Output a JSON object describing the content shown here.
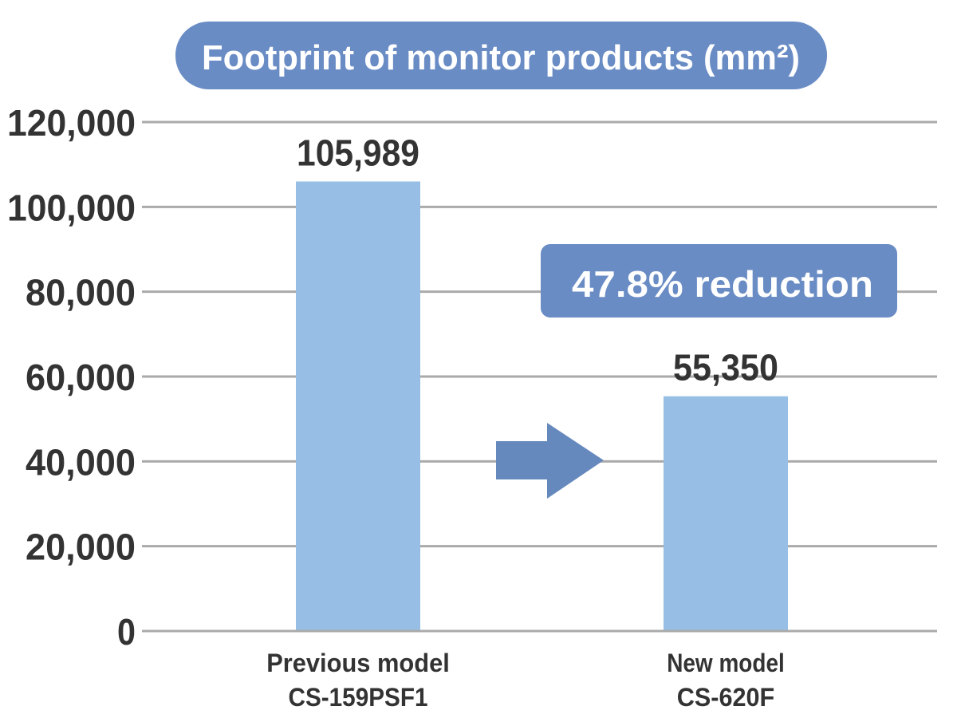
{
  "chart_data": {
    "type": "bar",
    "title": "Footprint of monitor products (mm²)",
    "categories": [
      {
        "line1": "Previous model",
        "line2": "CS-159PSF1"
      },
      {
        "line1": "New model",
        "line2": "CS-620F"
      }
    ],
    "values": [
      105989,
      55350
    ],
    "data_labels": [
      "105,989",
      "55,350"
    ],
    "ylim": [
      0,
      120000
    ],
    "yticks": [
      0,
      20000,
      40000,
      60000,
      80000,
      100000,
      120000
    ],
    "ytick_labels": [
      "0",
      "20,000",
      "40,000",
      "60,000",
      "80,000",
      "100,000",
      "120,000"
    ],
    "grid": true,
    "annotation": "47.8% reduction",
    "xlabel": "",
    "ylabel": ""
  },
  "colors": {
    "bar": "#97bfe6",
    "title_bg": "#6a8cc5",
    "arrow": "#6689bd",
    "grid": "#aaaaaa",
    "text": "#333333"
  }
}
